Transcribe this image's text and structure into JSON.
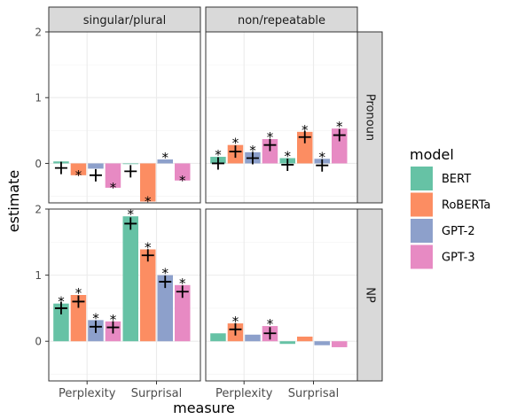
{
  "chart_data": {
    "type": "bar",
    "facet_columns": [
      "singular/plural",
      "non/repeatable"
    ],
    "facet_rows": [
      "Pronoun",
      "NP"
    ],
    "categories": [
      "Perplexity",
      "Surprisal"
    ],
    "xlabel": "measure",
    "ylabel": "estimate",
    "ylim": [
      -0.6,
      2.0
    ],
    "y_ticks": [
      0,
      1,
      2
    ],
    "grid": true,
    "legend": {
      "title": "model",
      "position": "right",
      "entries": [
        "BERT",
        "RoBERTa",
        "GPT-2",
        "GPT-3"
      ]
    },
    "series": [
      {
        "name": "BERT",
        "color": "#66c2a5"
      },
      {
        "name": "RoBERTa",
        "color": "#fc8d62"
      },
      {
        "name": "GPT-2",
        "color": "#8da0cb"
      },
      {
        "name": "GPT-3",
        "color": "#e78ac3"
      }
    ],
    "significance_marker": "*",
    "panels": [
      {
        "column": "singular/plural",
        "row": "Pronoun",
        "bars": [
          {
            "category": "Perplexity",
            "series": "BERT",
            "value": 0.03,
            "estimate": -0.07,
            "significant": false
          },
          {
            "category": "Perplexity",
            "series": "RoBERTa",
            "value": -0.18,
            "estimate": null,
            "significant": true
          },
          {
            "category": "Perplexity",
            "series": "GPT-2",
            "value": -0.08,
            "estimate": -0.18,
            "significant": false
          },
          {
            "category": "Perplexity",
            "series": "GPT-3",
            "value": -0.37,
            "estimate": null,
            "significant": true
          },
          {
            "category": "Surprisal",
            "series": "BERT",
            "value": 0.0,
            "estimate": -0.12,
            "significant": false
          },
          {
            "category": "Surprisal",
            "series": "RoBERTa",
            "value": -0.58,
            "estimate": null,
            "significant": true
          },
          {
            "category": "Surprisal",
            "series": "GPT-2",
            "value": 0.06,
            "estimate": null,
            "significant": true
          },
          {
            "category": "Surprisal",
            "series": "GPT-3",
            "value": -0.26,
            "estimate": null,
            "significant": true
          }
        ]
      },
      {
        "column": "non/repeatable",
        "row": "Pronoun",
        "bars": [
          {
            "category": "Perplexity",
            "series": "BERT",
            "value": 0.1,
            "estimate": 0.0,
            "significant": true
          },
          {
            "category": "Perplexity",
            "series": "RoBERTa",
            "value": 0.28,
            "estimate": 0.18,
            "significant": true
          },
          {
            "category": "Perplexity",
            "series": "GPT-2",
            "value": 0.17,
            "estimate": 0.08,
            "significant": true
          },
          {
            "category": "Perplexity",
            "series": "GPT-3",
            "value": 0.37,
            "estimate": 0.28,
            "significant": true
          },
          {
            "category": "Surprisal",
            "series": "BERT",
            "value": 0.08,
            "estimate": -0.02,
            "significant": true
          },
          {
            "category": "Surprisal",
            "series": "RoBERTa",
            "value": 0.48,
            "estimate": 0.4,
            "significant": true
          },
          {
            "category": "Surprisal",
            "series": "GPT-2",
            "value": 0.07,
            "estimate": -0.03,
            "significant": true
          },
          {
            "category": "Surprisal",
            "series": "GPT-3",
            "value": 0.53,
            "estimate": 0.43,
            "significant": true
          }
        ]
      },
      {
        "column": "singular/plural",
        "row": "NP",
        "bars": [
          {
            "category": "Perplexity",
            "series": "BERT",
            "value": 0.57,
            "estimate": 0.5,
            "significant": true
          },
          {
            "category": "Perplexity",
            "series": "RoBERTa",
            "value": 0.7,
            "estimate": 0.6,
            "significant": true
          },
          {
            "category": "Perplexity",
            "series": "GPT-2",
            "value": 0.32,
            "estimate": 0.22,
            "significant": true
          },
          {
            "category": "Perplexity",
            "series": "GPT-3",
            "value": 0.3,
            "estimate": 0.21,
            "significant": true
          },
          {
            "category": "Surprisal",
            "series": "BERT",
            "value": 1.89,
            "estimate": 1.78,
            "significant": true
          },
          {
            "category": "Surprisal",
            "series": "RoBERTa",
            "value": 1.39,
            "estimate": 1.3,
            "significant": true
          },
          {
            "category": "Surprisal",
            "series": "GPT-2",
            "value": 1.0,
            "estimate": 0.9,
            "significant": true
          },
          {
            "category": "Surprisal",
            "series": "GPT-3",
            "value": 0.85,
            "estimate": 0.75,
            "significant": true
          }
        ]
      },
      {
        "column": "non/repeatable",
        "row": "NP",
        "bars": [
          {
            "category": "Perplexity",
            "series": "BERT",
            "value": 0.12,
            "estimate": null,
            "significant": false
          },
          {
            "category": "Perplexity",
            "series": "RoBERTa",
            "value": 0.27,
            "estimate": 0.18,
            "significant": true
          },
          {
            "category": "Perplexity",
            "series": "GPT-2",
            "value": 0.1,
            "estimate": null,
            "significant": false
          },
          {
            "category": "Perplexity",
            "series": "GPT-3",
            "value": 0.23,
            "estimate": 0.12,
            "significant": true
          },
          {
            "category": "Surprisal",
            "series": "BERT",
            "value": -0.04,
            "estimate": null,
            "significant": false
          },
          {
            "category": "Surprisal",
            "series": "RoBERTa",
            "value": 0.07,
            "estimate": null,
            "significant": false
          },
          {
            "category": "Surprisal",
            "series": "GPT-2",
            "value": -0.06,
            "estimate": null,
            "significant": false
          },
          {
            "category": "Surprisal",
            "series": "GPT-3",
            "value": -0.09,
            "estimate": null,
            "significant": false
          }
        ]
      }
    ]
  }
}
